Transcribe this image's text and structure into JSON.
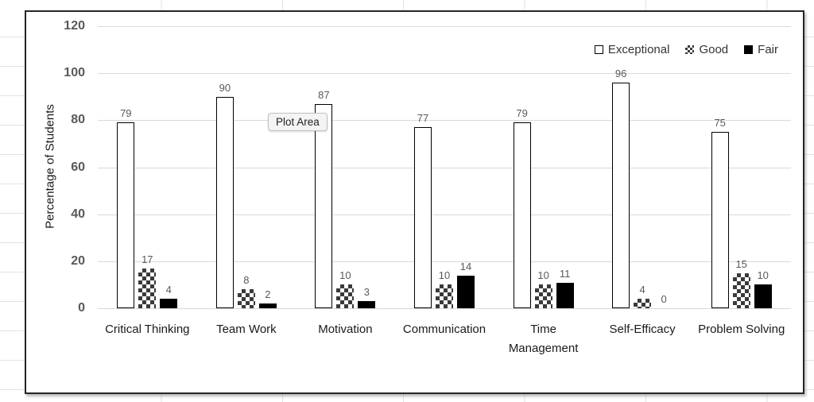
{
  "colors": {
    "chart_border": "#262626",
    "gridline": "#d9d9d9",
    "tick_label": "#595959",
    "data_label": "#595959",
    "category_label": "#1a1a1a",
    "axis_title": "#1a1a1a",
    "legend_text": "#333333",
    "bar_outline": "#000000",
    "fair_fill": "#000000",
    "pattern_ink": "#3a3a3a",
    "sheet_gridline": "#e2e2e2",
    "tooltip_bg": "#f4f4f4",
    "tooltip_border": "#c0c0c0"
  },
  "overlay": {
    "tooltip_label": "Plot Area"
  },
  "chart_data": {
    "type": "bar",
    "title": "",
    "xlabel": "",
    "ylabel": "Percentage of Students",
    "ylim": [
      0,
      120
    ],
    "yticks": [
      0,
      20,
      40,
      60,
      80,
      100,
      120
    ],
    "grid": true,
    "legend_position": "top-right",
    "data_labels": true,
    "categories": [
      "Critical Thinking",
      "Team Work",
      "Motivation",
      "Communication",
      "Time Management",
      "Self-Efficacy",
      "Problem Solving"
    ],
    "series": [
      {
        "name": "Exceptional",
        "fill": "white-outline",
        "values": [
          79,
          90,
          87,
          77,
          79,
          96,
          75
        ]
      },
      {
        "name": "Good",
        "fill": "checker-pattern",
        "values": [
          17,
          8,
          10,
          10,
          10,
          4,
          15
        ]
      },
      {
        "name": "Fair",
        "fill": "solid-black",
        "values": [
          4,
          2,
          3,
          14,
          11,
          0,
          10
        ]
      }
    ]
  }
}
